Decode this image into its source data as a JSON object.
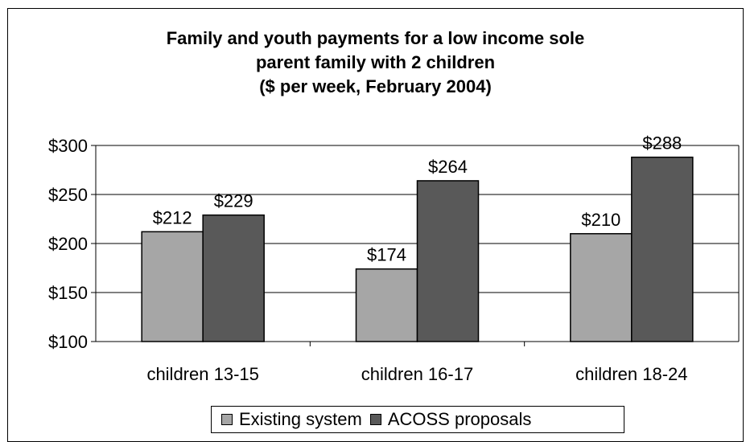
{
  "chart_data": {
    "type": "bar",
    "title": "Family and youth payments for a low income sole\nparent family with 2 children\n($ per week, February 2004)",
    "categories": [
      "children 13-15",
      "children 16-17",
      "children 18-24"
    ],
    "series": [
      {
        "name": "Existing system",
        "values": [
          212,
          174,
          210
        ],
        "labels": [
          "$212",
          "$174",
          "$210"
        ],
        "color": "#a6a6a6"
      },
      {
        "name": "ACOSS proposals",
        "values": [
          229,
          264,
          288
        ],
        "labels": [
          "$229",
          "$264",
          "$288"
        ],
        "color": "#595959"
      }
    ],
    "ylim": [
      100,
      300
    ],
    "yticks": [
      100,
      150,
      200,
      250,
      300
    ],
    "ytick_labels": [
      "$100",
      "$150",
      "$200",
      "$250",
      "$300"
    ],
    "grid": true,
    "legend": "bottom",
    "xlabel": "",
    "ylabel": ""
  }
}
